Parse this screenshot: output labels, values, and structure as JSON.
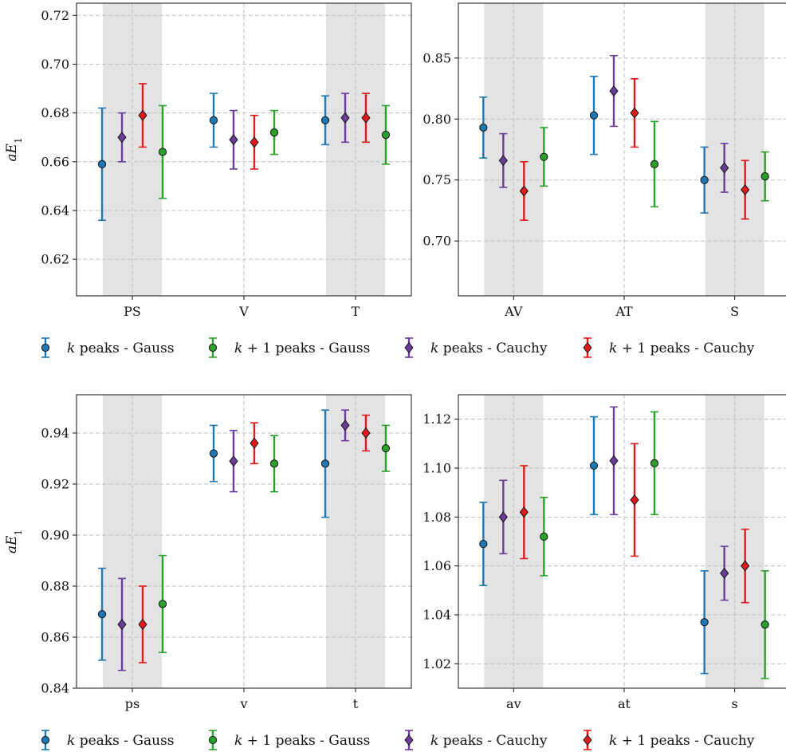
{
  "colors": {
    "gauss_k": "#1f77b4",
    "gauss_k1": "#2ca02c",
    "cauchy_k": "#6a3d9a",
    "cauchy_k1": "#e31a1c",
    "band": "#e3e3e3",
    "grid": "#bfbfbf"
  },
  "legend": {
    "entries": [
      {
        "key": "gauss_k",
        "k": "k",
        "rest": " peaks - Gauss",
        "marker": "circle",
        "color": "#1f77b4"
      },
      {
        "key": "gauss_k1",
        "k": "k",
        "rest": " + 1 peaks - Gauss",
        "marker": "circle",
        "color": "#2ca02c"
      },
      {
        "key": "cauchy_k",
        "k": "k",
        "rest": " peaks - Cauchy",
        "marker": "diamond",
        "color": "#6a3d9a"
      },
      {
        "key": "cauchy_k1",
        "k": "k",
        "rest": " + 1 peaks - Cauchy",
        "marker": "diamond",
        "color": "#e31a1c"
      }
    ]
  },
  "chart_data": [
    {
      "type": "scatter",
      "ylabel": "aE1",
      "categories": [
        "PS",
        "V",
        "T"
      ],
      "ylim": [
        0.605,
        0.725
      ],
      "yticks": [
        0.62,
        0.64,
        0.66,
        0.68,
        0.7,
        0.72
      ],
      "ytick_labels": [
        "0.62",
        "0.64",
        "0.66",
        "0.68",
        "0.70",
        "0.72"
      ],
      "series": [
        {
          "key": "gauss_k",
          "values": [
            0.659,
            0.677,
            0.677
          ],
          "err_low": [
            0.636,
            0.666,
            0.667
          ],
          "err_high": [
            0.682,
            0.688,
            0.687
          ]
        },
        {
          "key": "cauchy_k",
          "values": [
            0.67,
            0.669,
            0.678
          ],
          "err_low": [
            0.66,
            0.657,
            0.668
          ],
          "err_high": [
            0.68,
            0.681,
            0.688
          ]
        },
        {
          "key": "cauchy_k1",
          "values": [
            0.679,
            0.668,
            0.678
          ],
          "err_low": [
            0.666,
            0.657,
            0.668
          ],
          "err_high": [
            0.692,
            0.679,
            0.688
          ]
        },
        {
          "key": "gauss_k1",
          "values": [
            0.664,
            0.672,
            0.671
          ],
          "err_low": [
            0.645,
            0.663,
            0.659
          ],
          "err_high": [
            0.683,
            0.681,
            0.683
          ]
        }
      ]
    },
    {
      "type": "scatter",
      "ylabel": "",
      "categories": [
        "AV",
        "AT",
        "S"
      ],
      "ylim": [
        0.655,
        0.895
      ],
      "yticks": [
        0.7,
        0.75,
        0.8,
        0.85
      ],
      "ytick_labels": [
        "0.70",
        "0.75",
        "0.80",
        "0.85"
      ],
      "series": [
        {
          "key": "gauss_k",
          "values": [
            0.793,
            0.803,
            0.75
          ],
          "err_low": [
            0.768,
            0.771,
            0.723
          ],
          "err_high": [
            0.818,
            0.835,
            0.777
          ]
        },
        {
          "key": "cauchy_k",
          "values": [
            0.766,
            0.823,
            0.76
          ],
          "err_low": [
            0.744,
            0.794,
            0.74
          ],
          "err_high": [
            0.788,
            0.852,
            0.78
          ]
        },
        {
          "key": "cauchy_k1",
          "values": [
            0.741,
            0.805,
            0.742
          ],
          "err_low": [
            0.717,
            0.777,
            0.718
          ],
          "err_high": [
            0.765,
            0.833,
            0.766
          ]
        },
        {
          "key": "gauss_k1",
          "values": [
            0.769,
            0.763,
            0.753
          ],
          "err_low": [
            0.745,
            0.728,
            0.733
          ],
          "err_high": [
            0.793,
            0.798,
            0.773
          ]
        }
      ]
    },
    {
      "type": "scatter",
      "ylabel": "aE1",
      "categories": [
        "ps",
        "v",
        "t"
      ],
      "ylim": [
        0.84,
        0.955
      ],
      "yticks": [
        0.84,
        0.86,
        0.88,
        0.9,
        0.92,
        0.94
      ],
      "ytick_labels": [
        "0.84",
        "0.86",
        "0.88",
        "0.90",
        "0.92",
        "0.94"
      ],
      "series": [
        {
          "key": "gauss_k",
          "values": [
            0.869,
            0.932,
            0.928
          ],
          "err_low": [
            0.851,
            0.921,
            0.907
          ],
          "err_high": [
            0.887,
            0.943,
            0.949
          ]
        },
        {
          "key": "cauchy_k",
          "values": [
            0.865,
            0.929,
            0.943
          ],
          "err_low": [
            0.847,
            0.917,
            0.937
          ],
          "err_high": [
            0.883,
            0.941,
            0.949
          ]
        },
        {
          "key": "cauchy_k1",
          "values": [
            0.865,
            0.936,
            0.94
          ],
          "err_low": [
            0.85,
            0.928,
            0.933
          ],
          "err_high": [
            0.88,
            0.944,
            0.947
          ]
        },
        {
          "key": "gauss_k1",
          "values": [
            0.873,
            0.928,
            0.934
          ],
          "err_low": [
            0.854,
            0.917,
            0.925
          ],
          "err_high": [
            0.892,
            0.939,
            0.943
          ]
        }
      ]
    },
    {
      "type": "scatter",
      "ylabel": "",
      "categories": [
        "av",
        "at",
        "s"
      ],
      "ylim": [
        1.01,
        1.13
      ],
      "yticks": [
        1.02,
        1.04,
        1.06,
        1.08,
        1.1,
        1.12
      ],
      "ytick_labels": [
        "1.02",
        "1.04",
        "1.06",
        "1.08",
        "1.10",
        "1.12"
      ],
      "series": [
        {
          "key": "gauss_k",
          "values": [
            1.069,
            1.101,
            1.037
          ],
          "err_low": [
            1.052,
            1.081,
            1.016
          ],
          "err_high": [
            1.086,
            1.121,
            1.058
          ]
        },
        {
          "key": "cauchy_k",
          "values": [
            1.08,
            1.103,
            1.057
          ],
          "err_low": [
            1.065,
            1.081,
            1.046
          ],
          "err_high": [
            1.095,
            1.125,
            1.068
          ]
        },
        {
          "key": "cauchy_k1",
          "values": [
            1.082,
            1.087,
            1.06
          ],
          "err_low": [
            1.063,
            1.064,
            1.045
          ],
          "err_high": [
            1.101,
            1.11,
            1.075
          ]
        },
        {
          "key": "gauss_k1",
          "values": [
            1.072,
            1.102,
            1.036
          ],
          "err_low": [
            1.056,
            1.081,
            1.014
          ],
          "err_high": [
            1.088,
            1.123,
            1.058
          ]
        }
      ]
    }
  ]
}
